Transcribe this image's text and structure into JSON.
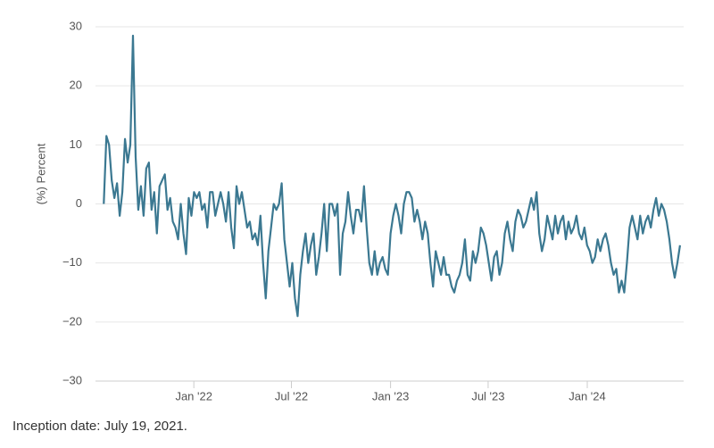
{
  "chart_data": {
    "type": "line",
    "y_label": "(%) Percent",
    "footnote": "Inception date: July 19, 2021.",
    "xlim": [
      2021.5,
      2024.49
    ],
    "ylim": [
      -30,
      30
    ],
    "yticks": [
      {
        "value": -30,
        "label": "−30"
      },
      {
        "value": -20,
        "label": "−20"
      },
      {
        "value": -10,
        "label": "−10"
      },
      0,
      10,
      20,
      30
    ],
    "xticks": [
      {
        "value": 2022,
        "label": "Jan '22"
      },
      {
        "value": 2022.496,
        "label": "Jul '22"
      },
      {
        "value": 2023,
        "label": "Jan '23"
      },
      {
        "value": 2023.496,
        "label": "Jul '23"
      },
      {
        "value": 2024,
        "label": "Jan '24"
      }
    ],
    "grid": true,
    "x": [
      2021.542,
      2021.5555,
      2021.569,
      2021.5825,
      2021.596,
      2021.6095,
      2021.623,
      2021.6365,
      2021.65,
      2021.6635,
      2021.677,
      2021.6905,
      2021.704,
      2021.7175,
      2021.731,
      2021.7445,
      2021.758,
      2021.7715,
      2021.785,
      2021.7985,
      2021.812,
      2021.8255,
      2021.839,
      2021.8525,
      2021.866,
      2021.8795,
      2021.893,
      2021.9065,
      2021.92,
      2021.9335,
      2021.947,
      2021.9605,
      2021.974,
      2021.9875,
      2022.001,
      2022.0145,
      2022.028,
      2022.0415,
      2022.055,
      2022.0685,
      2022.082,
      2022.0955,
      2022.109,
      2022.1225,
      2022.136,
      2022.1495,
      2022.163,
      2022.1765,
      2022.19,
      2022.2035,
      2022.217,
      2022.2305,
      2022.244,
      2022.2575,
      2022.271,
      2022.2845,
      2022.298,
      2022.3115,
      2022.325,
      2022.3385,
      2022.352,
      2022.3655,
      2022.379,
      2022.3925,
      2022.406,
      2022.4195,
      2022.433,
      2022.4465,
      2022.46,
      2022.4735,
      2022.487,
      2022.5005,
      2022.514,
      2022.5275,
      2022.541,
      2022.5545,
      2022.568,
      2022.5815,
      2022.595,
      2022.6085,
      2022.622,
      2022.6355,
      2022.649,
      2022.6625,
      2022.676,
      2022.6895,
      2022.703,
      2022.7165,
      2022.73,
      2022.7435,
      2022.757,
      2022.7705,
      2022.784,
      2022.7975,
      2022.811,
      2022.8245,
      2022.838,
      2022.8515,
      2022.865,
      2022.8785,
      2022.892,
      2022.9055,
      2022.919,
      2022.9325,
      2022.946,
      2022.9595,
      2022.973,
      2022.9865,
      2023.0,
      2023.0135,
      2023.027,
      2023.0405,
      2023.054,
      2023.0675,
      2023.081,
      2023.0945,
      2023.108,
      2023.1215,
      2023.135,
      2023.1485,
      2023.162,
      2023.1755,
      2023.189,
      2023.2025,
      2023.216,
      2023.2295,
      2023.243,
      2023.2565,
      2023.27,
      2023.2835,
      2023.297,
      2023.3105,
      2023.324,
      2023.3375,
      2023.351,
      2023.3645,
      2023.378,
      2023.3915,
      2023.405,
      2023.4185,
      2023.432,
      2023.4455,
      2023.459,
      2023.4725,
      2023.486,
      2023.4995,
      2023.513,
      2023.5265,
      2023.54,
      2023.5535,
      2023.567,
      2023.5805,
      2023.594,
      2023.6075,
      2023.621,
      2023.6345,
      2023.648,
      2023.6615,
      2023.675,
      2023.6885,
      2023.702,
      2023.7155,
      2023.729,
      2023.7425,
      2023.756,
      2023.7695,
      2023.783,
      2023.7965,
      2023.81,
      2023.8235,
      2023.837,
      2023.8505,
      2023.864,
      2023.8775,
      2023.891,
      2023.9045,
      2023.918,
      2023.9315,
      2023.945,
      2023.9585,
      2023.972,
      2023.9855,
      2023.999,
      2024.0125,
      2024.026,
      2024.0395,
      2024.053,
      2024.0665,
      2024.08,
      2024.0935,
      2024.107,
      2024.1205,
      2024.134,
      2024.1475,
      2024.161,
      2024.1745,
      2024.188,
      2024.2015,
      2024.215,
      2024.2285,
      2024.242,
      2024.2555,
      2024.269,
      2024.2825,
      2024.296,
      2024.3095,
      2024.323,
      2024.3365,
      2024.35,
      2024.3635,
      2024.377,
      2024.3905,
      2024.404,
      2024.4175,
      2024.431,
      2024.4445,
      2024.458,
      2024.4715
    ],
    "series": [
      {
        "color": "#3b7891",
        "values": [
          0,
          11.5,
          10,
          4,
          1,
          3.5,
          -2,
          2,
          11,
          7,
          10,
          28.5,
          8,
          -1,
          3,
          -2,
          6,
          7,
          -1,
          2,
          -5,
          3,
          4,
          5,
          -1,
          1,
          -3,
          -4,
          -6,
          0,
          -5,
          -8.5,
          1,
          -2,
          2,
          1,
          2,
          -1,
          0,
          -4,
          2,
          2,
          -2,
          0,
          2,
          0,
          -3,
          2,
          -4,
          -7.5,
          3,
          0,
          2,
          -1,
          -4,
          -3,
          -6,
          -5,
          -7,
          -2,
          -10,
          -16,
          -8,
          -4,
          0,
          -1,
          0,
          3.5,
          -6,
          -10,
          -14,
          -10,
          -16,
          -19,
          -12,
          -8,
          -5,
          -10,
          -7,
          -5,
          -12,
          -9,
          -5,
          0,
          -8,
          0,
          0,
          -2,
          0,
          -12,
          -5,
          -3,
          2,
          -2,
          -5,
          -1,
          -1,
          -3,
          3,
          -4,
          -10,
          -12,
          -8,
          -12,
          -10,
          -9,
          -11,
          -12,
          -5,
          -2,
          0,
          -2,
          -5,
          0,
          2,
          2,
          1,
          -3,
          -1,
          -3,
          -6,
          -3,
          -5,
          -10,
          -14,
          -8,
          -10,
          -12,
          -9,
          -12,
          -12,
          -14,
          -15,
          -13,
          -12,
          -10,
          -6,
          -12,
          -13,
          -8,
          -10,
          -8,
          -4,
          -5,
          -7,
          -10,
          -13,
          -9,
          -8,
          -12,
          -10,
          -5,
          -3,
          -6,
          -8,
          -3,
          -1,
          -2,
          -4,
          -3,
          -1,
          1,
          -1,
          2,
          -5,
          -8,
          -6,
          -2,
          -4,
          -6,
          -2,
          -5,
          -3,
          -2,
          -6,
          -3,
          -5,
          -4,
          -2,
          -5,
          -6,
          -4,
          -7,
          -8,
          -10,
          -9,
          -6,
          -8,
          -6,
          -5,
          -7,
          -10,
          -12,
          -11,
          -15,
          -13,
          -15,
          -10,
          -4,
          -2,
          -4,
          -6,
          -2,
          -5,
          -3,
          -2,
          -4,
          -1,
          1,
          -2,
          0,
          -1,
          -3,
          -6,
          -10,
          -12.5,
          -10,
          -7
        ]
      }
    ]
  }
}
